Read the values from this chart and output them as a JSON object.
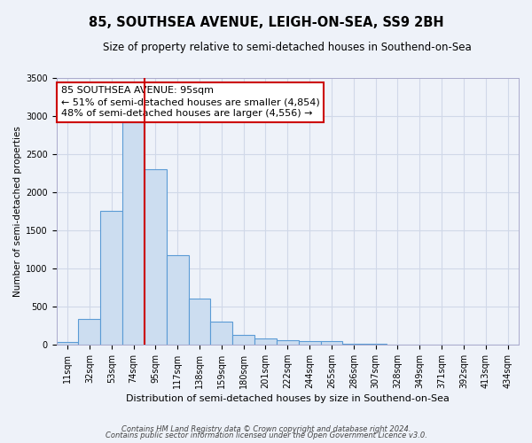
{
  "title": "85, SOUTHSEA AVENUE, LEIGH-ON-SEA, SS9 2BH",
  "subtitle": "Size of property relative to semi-detached houses in Southend-on-Sea",
  "xlabel": "Distribution of semi-detached houses by size in Southend-on-Sea",
  "ylabel": "Number of semi-detached properties",
  "footnote1": "Contains HM Land Registry data © Crown copyright and database right 2024.",
  "footnote2": "Contains public sector information licensed under the Open Government Licence v3.0.",
  "annotation_line1": "85 SOUTHSEA AVENUE: 95sqm",
  "annotation_line2": "← 51% of semi-detached houses are smaller (4,854)",
  "annotation_line3": "48% of semi-detached houses are larger (4,556) →",
  "bar_edge_color": "#5b9bd5",
  "bar_face_color": "#ccddf0",
  "vline_color": "#cc0000",
  "annotation_box_edge": "#cc0000",
  "annotation_box_face": "#ffffff",
  "grid_color": "#d0d8e8",
  "background_color": "#eef2f9",
  "categories": [
    "11sqm",
    "32sqm",
    "53sqm",
    "74sqm",
    "95sqm",
    "117sqm",
    "138sqm",
    "159sqm",
    "180sqm",
    "201sqm",
    "222sqm",
    "244sqm",
    "265sqm",
    "286sqm",
    "307sqm",
    "328sqm",
    "349sqm",
    "371sqm",
    "392sqm",
    "413sqm",
    "434sqm"
  ],
  "values": [
    28,
    330,
    1760,
    2920,
    2300,
    1170,
    600,
    300,
    130,
    80,
    60,
    45,
    40,
    5,
    5,
    3,
    2,
    1,
    1,
    0,
    0
  ],
  "vline_idx": 3.5,
  "ylim": [
    0,
    3500
  ],
  "yticks": [
    0,
    500,
    1000,
    1500,
    2000,
    2500,
    3000,
    3500
  ],
  "title_fontsize": 10.5,
  "subtitle_fontsize": 8.5,
  "annotation_fontsize": 8,
  "xlabel_fontsize": 8,
  "ylabel_fontsize": 7.5,
  "footnote_fontsize": 6,
  "tick_fontsize": 7
}
